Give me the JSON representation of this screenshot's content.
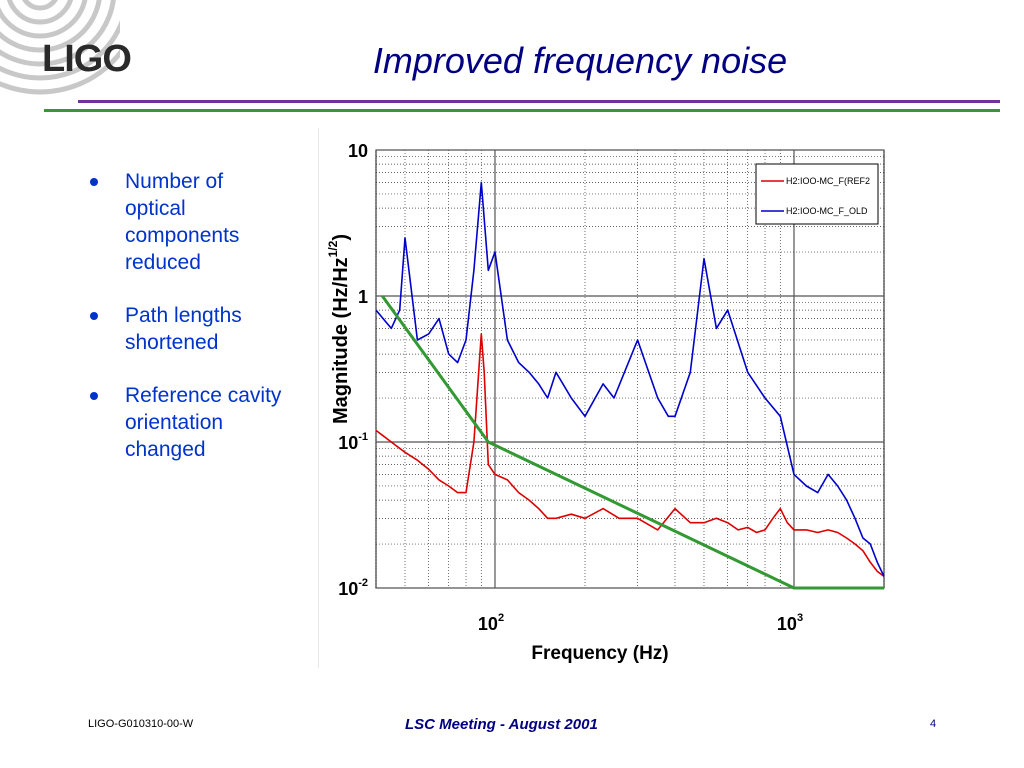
{
  "slide": {
    "logo": "LIGO",
    "title": "Improved frequency noise",
    "bullets": [
      "Number of optical components reduced",
      "Path lengths shortened",
      "Reference cavity orientation changed"
    ],
    "footer_left": "LIGO-G010310-00-W",
    "footer_center": "LSC Meeting - August 2001",
    "page_number": "4"
  },
  "colors": {
    "title": "#000080",
    "bullet_text": "#0033cc",
    "rule_purple": "#7030a0",
    "rule_green": "#339933"
  },
  "chart_data": {
    "type": "line",
    "x_scale": "log",
    "y_scale": "log",
    "xlabel": "Frequency (Hz)",
    "ylabel": "Magnitude (Hz/Hz",
    "ylabel_superscript": "1/2",
    "ylabel_close": ")",
    "xlim": [
      40,
      2000
    ],
    "ylim": [
      0.01,
      10
    ],
    "x_ticks": [
      {
        "base": "10",
        "exp": "2",
        "value": 100
      },
      {
        "base": "10",
        "exp": "3",
        "value": 1000
      }
    ],
    "y_ticks": [
      {
        "base": "10",
        "exp": "",
        "value": 10
      },
      {
        "base": "1",
        "exp": "",
        "value": 1
      },
      {
        "base": "10",
        "exp": "-1",
        "value": 0.1
      },
      {
        "base": "10",
        "exp": "-2",
        "value": 0.01
      }
    ],
    "grid": true,
    "legend_position": "top-right",
    "series": [
      {
        "name": "H2:IOO-MC_F(REF2",
        "color": "#dd0000",
        "x": [
          40,
          45,
          50,
          55,
          60,
          65,
          70,
          75,
          80,
          85,
          90,
          92,
          95,
          100,
          110,
          120,
          130,
          140,
          150,
          160,
          180,
          200,
          230,
          260,
          300,
          350,
          400,
          450,
          500,
          550,
          600,
          650,
          700,
          750,
          800,
          850,
          900,
          950,
          1000,
          1100,
          1200,
          1300,
          1400,
          1500,
          1600,
          1700,
          1800,
          1900,
          2000
        ],
        "y": [
          0.12,
          0.1,
          0.085,
          0.075,
          0.065,
          0.055,
          0.05,
          0.045,
          0.045,
          0.1,
          0.55,
          0.3,
          0.07,
          0.06,
          0.055,
          0.045,
          0.04,
          0.035,
          0.03,
          0.03,
          0.032,
          0.03,
          0.035,
          0.03,
          0.03,
          0.025,
          0.035,
          0.028,
          0.028,
          0.03,
          0.028,
          0.025,
          0.026,
          0.024,
          0.025,
          0.03,
          0.035,
          0.028,
          0.025,
          0.025,
          0.024,
          0.025,
          0.024,
          0.022,
          0.02,
          0.018,
          0.015,
          0.013,
          0.012
        ]
      },
      {
        "name": "H2:IOO-MC_F_OLD",
        "color": "#0000cc",
        "x": [
          40,
          45,
          48,
          50,
          55,
          60,
          65,
          70,
          75,
          80,
          85,
          90,
          95,
          100,
          110,
          120,
          130,
          140,
          150,
          160,
          180,
          200,
          230,
          250,
          300,
          350,
          380,
          400,
          450,
          500,
          550,
          600,
          700,
          800,
          900,
          1000,
          1100,
          1200,
          1300,
          1400,
          1500,
          1600,
          1700,
          1800,
          1900,
          2000
        ],
        "y": [
          0.8,
          0.6,
          0.8,
          2.5,
          0.5,
          0.55,
          0.7,
          0.4,
          0.35,
          0.5,
          1.5,
          6.0,
          1.5,
          2.0,
          0.5,
          0.35,
          0.3,
          0.25,
          0.2,
          0.3,
          0.2,
          0.15,
          0.25,
          0.2,
          0.5,
          0.2,
          0.15,
          0.15,
          0.3,
          1.8,
          0.6,
          0.8,
          0.3,
          0.2,
          0.15,
          0.06,
          0.05,
          0.045,
          0.06,
          0.05,
          0.04,
          0.03,
          0.022,
          0.02,
          0.015,
          0.012
        ]
      },
      {
        "name": "",
        "color": "#339933",
        "x": [
          42,
          95,
          1000,
          2000
        ],
        "y": [
          1.0,
          0.1,
          0.01,
          0.01
        ]
      }
    ]
  }
}
